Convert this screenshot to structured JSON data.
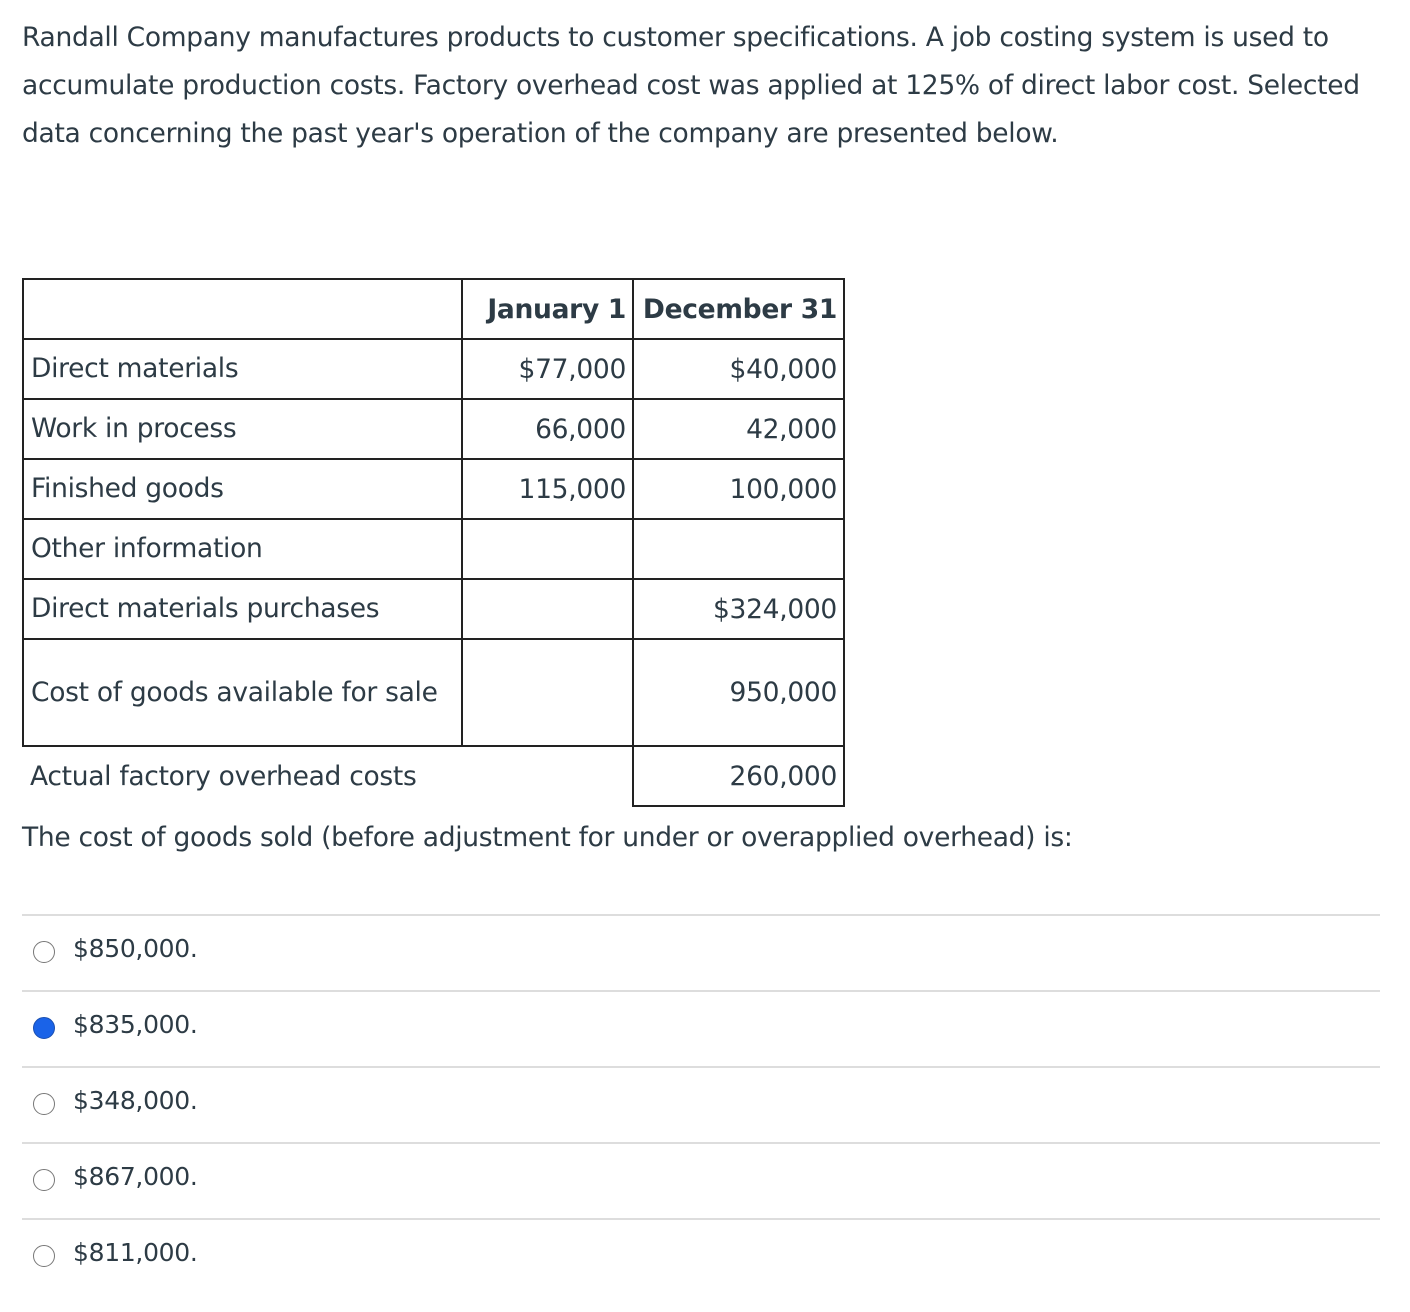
{
  "question": {
    "text": "Randall Company manufactures products to customer specifications. A job costing system is used to accumulate production costs. Factory overhead cost was applied at 125% of direct labor cost. Selected data concerning the past year's operation of the company are presented below."
  },
  "table": {
    "header": [
      "January 1",
      "December 31"
    ],
    "rows": [
      [
        "Direct materials",
        "$77,000",
        "$40,000"
      ],
      [
        "Work in process",
        "66,000",
        "42,000"
      ],
      [
        "Finished goods",
        "115,000",
        "100,000"
      ],
      [
        "Other information",
        null,
        null
      ],
      [
        "Direct materials purchases",
        null,
        "$324,000"
      ],
      [
        "Cost of goods available for sale",
        null,
        "950,000"
      ],
      [
        "Actual factory overhead costs",
        null,
        "260,000"
      ]
    ]
  },
  "prompt": "The cost of goods sold (before adjustment for under or overapplied overhead) is:",
  "options": [
    "$850,000.",
    "$835,000.",
    "$348,000.",
    "$867,000.",
    "$811,000."
  ],
  "selected": 1
}
